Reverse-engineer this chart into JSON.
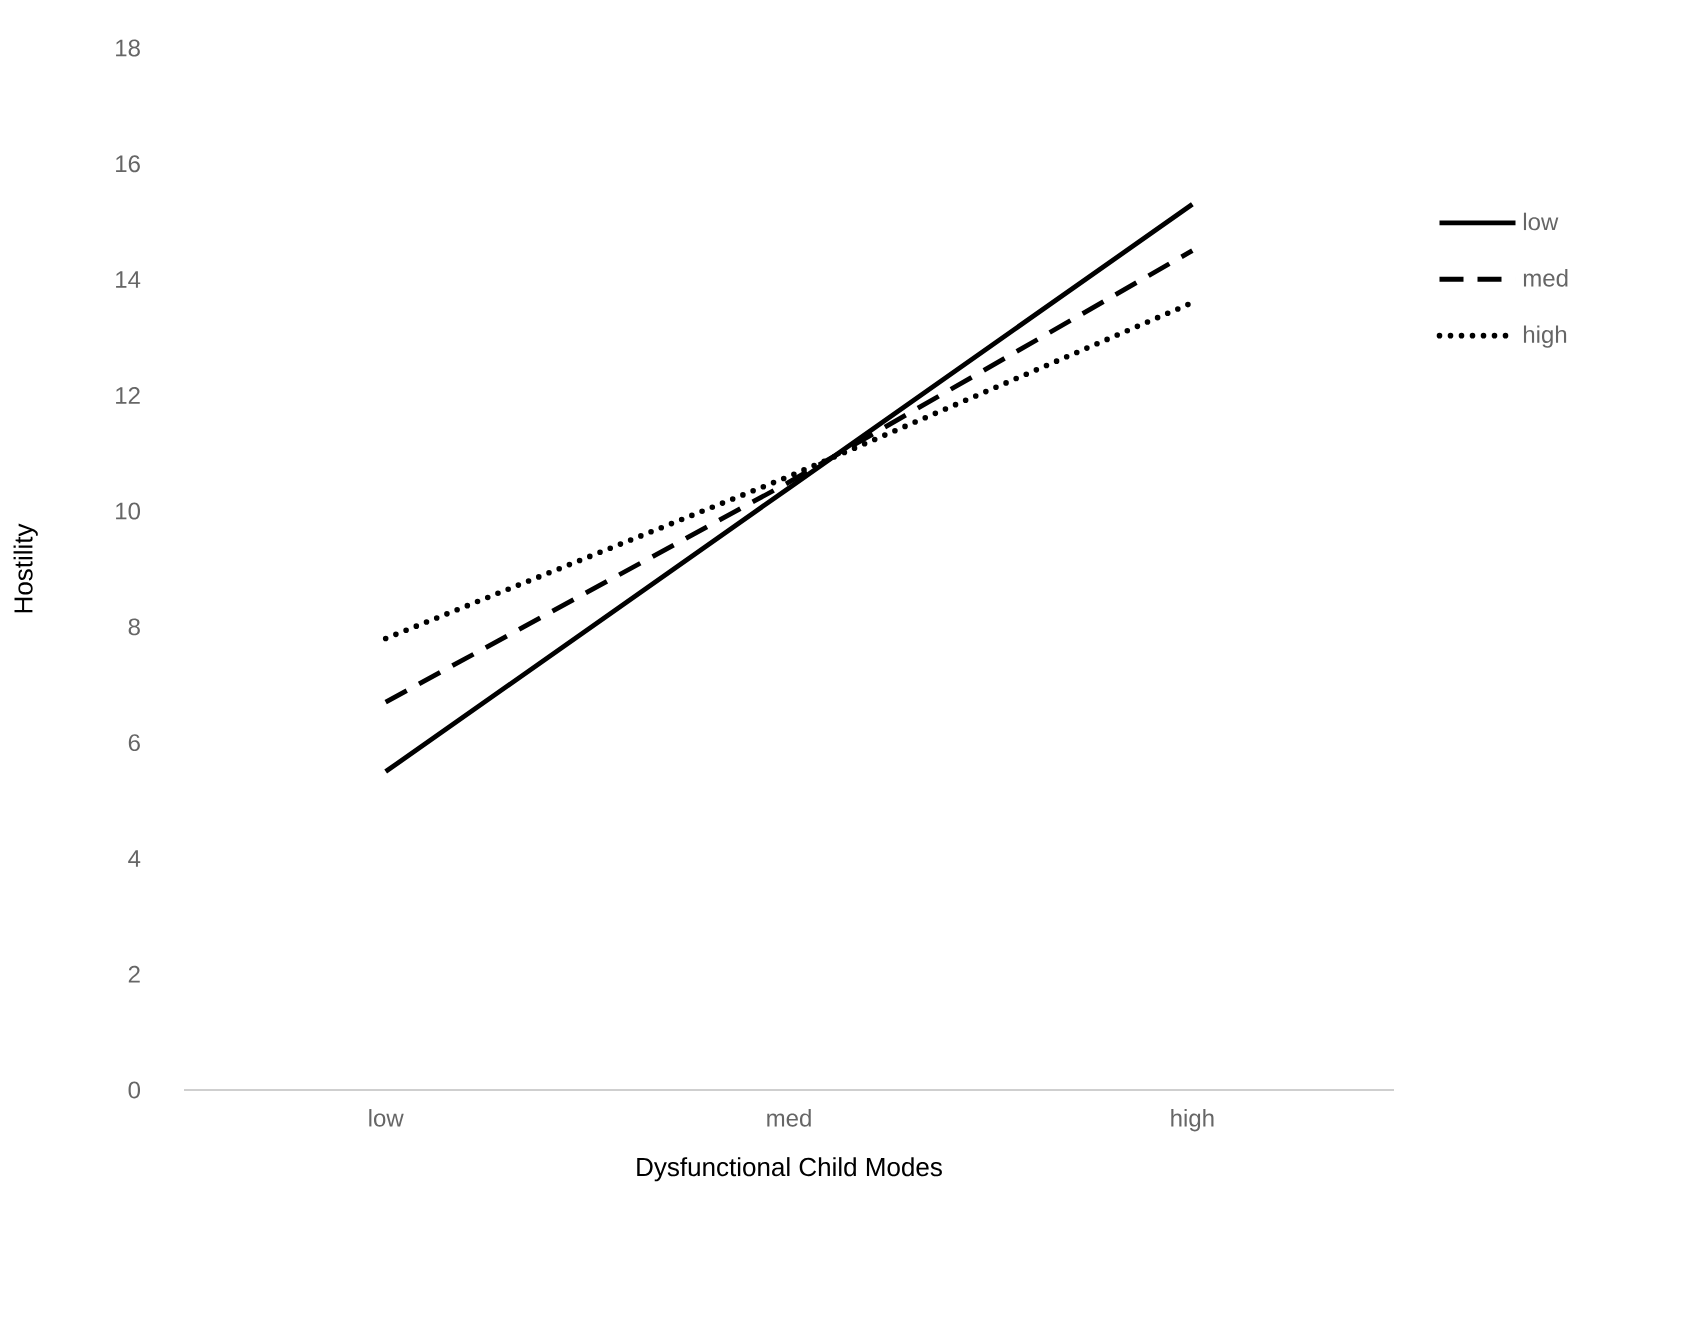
{
  "chart_data": {
    "type": "line",
    "xlabel": "Dysfunctional Child Modes",
    "ylabel": "Hostility",
    "categories": [
      "low",
      "med",
      "high"
    ],
    "series": [
      {
        "name": "low",
        "color": "#000000",
        "line_style": "solid",
        "values": [
          5.5,
          10.4,
          15.3
        ]
      },
      {
        "name": "med",
        "color": "#000000",
        "line_style": "dashed",
        "values": [
          6.7,
          10.5,
          14.5
        ]
      },
      {
        "name": "high",
        "color": "#000000",
        "line_style": "dotted",
        "values": [
          7.8,
          10.6,
          13.6
        ]
      }
    ],
    "ylim": [
      0,
      18
    ],
    "yticks": [
      0,
      2,
      4,
      6,
      8,
      10,
      12,
      14,
      16,
      18
    ],
    "grid": false,
    "legend": "right"
  }
}
